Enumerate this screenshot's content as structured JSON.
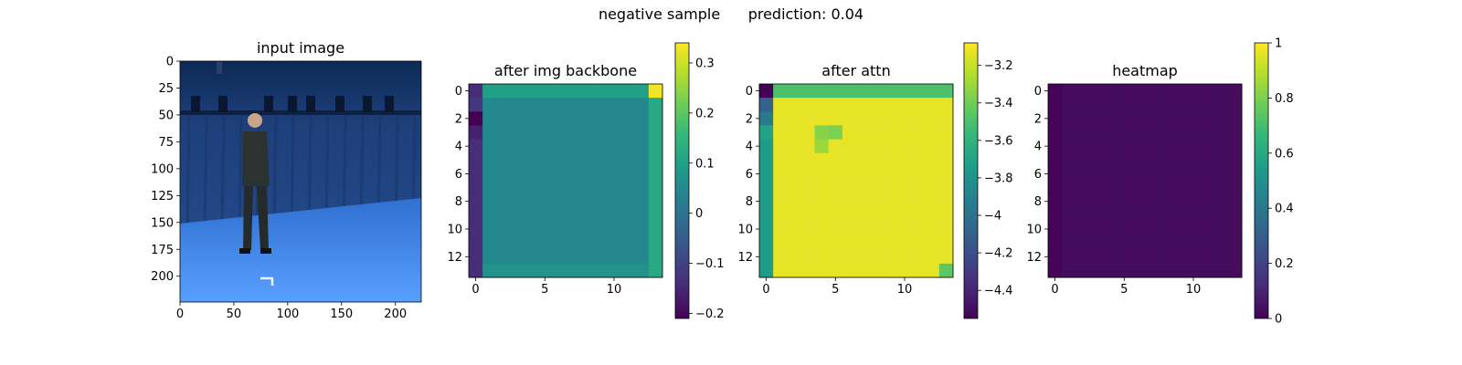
{
  "figure": {
    "suptitle_left": "negative sample",
    "suptitle_right": "prediction: 0.04"
  },
  "chart_data": [
    {
      "type": "image",
      "title": "input image",
      "xlim": [
        0,
        224
      ],
      "ylim": [
        224,
        0
      ],
      "xticks": [
        0,
        50,
        100,
        150,
        200
      ],
      "yticks": [
        0,
        25,
        50,
        75,
        100,
        125,
        150,
        175,
        200
      ],
      "scene": "person standing in a blue motion-capture studio with overhead lighting rig"
    },
    {
      "type": "heatmap",
      "title": "after img backbone",
      "grid_size": 14,
      "xticks": [
        0,
        5,
        10
      ],
      "yticks": [
        0,
        2,
        4,
        6,
        8,
        10,
        12
      ],
      "colorbar": {
        "min": -0.21,
        "max": 0.34,
        "ticks": [
          0.3,
          0.2,
          0.1,
          0.0,
          -0.1,
          -0.2
        ]
      },
      "pattern": {
        "base": 0.05,
        "top_row": 0.1,
        "left_col": -0.14,
        "right_col": 0.12,
        "bottom_row": 0.07,
        "cells": [
          {
            "r": 0,
            "c": 13,
            "v": 0.33
          },
          {
            "r": 1,
            "c": 0,
            "v": -0.12
          },
          {
            "r": 2,
            "c": 0,
            "v": -0.21
          },
          {
            "r": 3,
            "c": 0,
            "v": -0.16
          }
        ]
      }
    },
    {
      "type": "heatmap",
      "title": "after attn",
      "grid_size": 14,
      "xticks": [
        0,
        5,
        10
      ],
      "yticks": [
        0,
        2,
        4,
        6,
        8,
        10,
        12
      ],
      "colorbar": {
        "min": -4.55,
        "max": -3.08,
        "ticks": [
          -3.2,
          -3.4,
          -3.6,
          -3.8,
          -4.0,
          -4.2,
          -4.4
        ]
      },
      "pattern": {
        "base": -3.13,
        "top_row": -3.5,
        "left_col": -3.75,
        "cells": [
          {
            "r": 0,
            "c": 0,
            "v": -4.55
          },
          {
            "r": 1,
            "c": 0,
            "v": -4.1
          },
          {
            "r": 2,
            "c": 0,
            "v": -3.95
          },
          {
            "r": 3,
            "c": 0,
            "v": -3.7
          },
          {
            "r": 3,
            "c": 4,
            "v": -3.35
          },
          {
            "r": 4,
            "c": 4,
            "v": -3.3
          },
          {
            "r": 3,
            "c": 5,
            "v": -3.38
          },
          {
            "r": 13,
            "c": 13,
            "v": -3.45
          }
        ]
      }
    },
    {
      "type": "heatmap",
      "title": "heatmap",
      "grid_size": 14,
      "xticks": [
        0,
        5,
        10
      ],
      "yticks": [
        0,
        2,
        4,
        6,
        8,
        10,
        12
      ],
      "colorbar": {
        "min": 0.0,
        "max": 1.0,
        "ticks": [
          1.0,
          0.8,
          0.6,
          0.4,
          0.2,
          0.0
        ]
      },
      "pattern": {
        "base": 0.03,
        "left_col": 0.01
      }
    }
  ]
}
